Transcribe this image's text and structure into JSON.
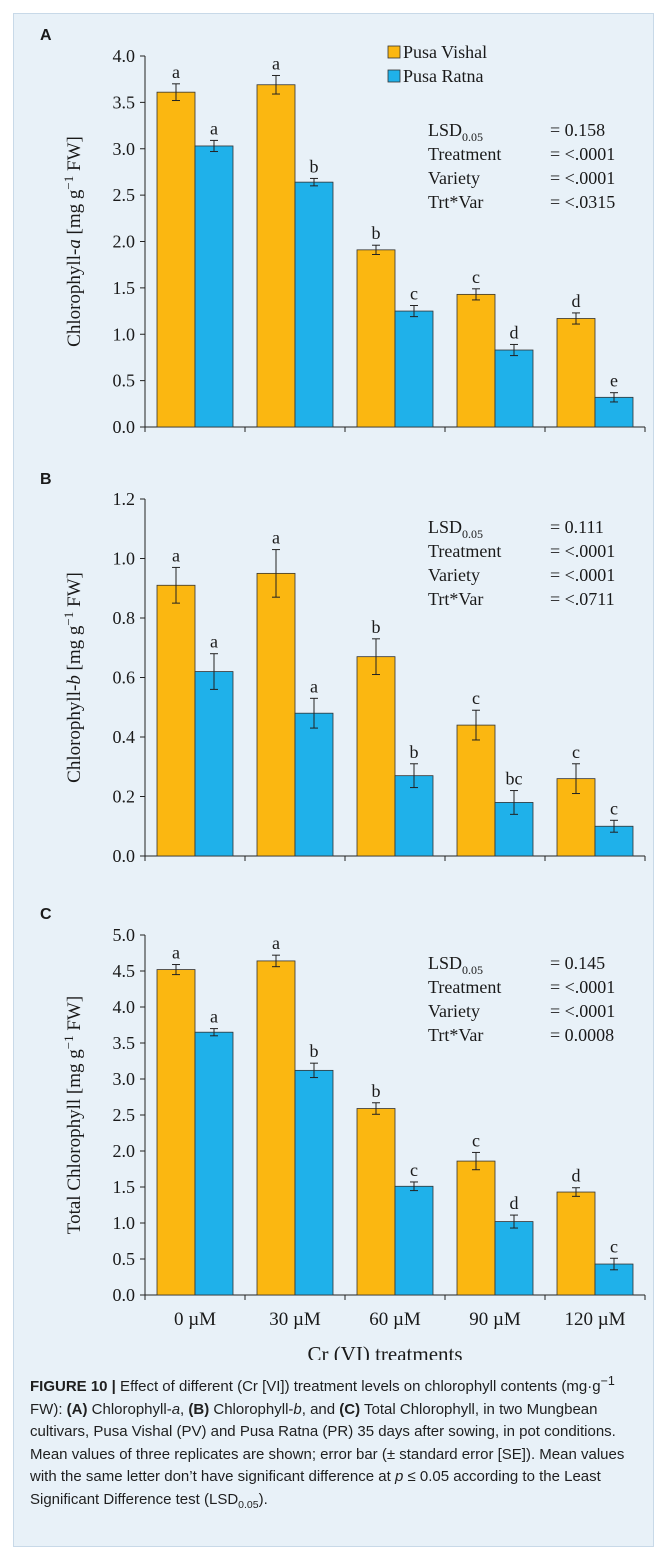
{
  "chart_data": [
    {
      "panel": "A",
      "type": "bar",
      "ylabel_main": "Chlorophyll-",
      "ylabel_italic": "a",
      "ylabel_unit_pre": " [mg g",
      "ylabel_unit_sup": "−1",
      "ylabel_unit_post": " FW]",
      "ylim": [
        0,
        4.0
      ],
      "yticks": [
        "0.0",
        "0.5",
        "1.0",
        "1.5",
        "2.0",
        "2.5",
        "3.0",
        "3.5",
        "4.0"
      ],
      "yticks_values": [
        0,
        0.5,
        1,
        1.5,
        2,
        2.5,
        3,
        3.5,
        4
      ],
      "categories": [
        "0 µM",
        "30 µM",
        "60 µM",
        "90 µM",
        "120 µM"
      ],
      "series": [
        {
          "name": "Pusa Vishal",
          "color": "#fbb711",
          "values": [
            3.61,
            3.69,
            1.91,
            1.43,
            1.17
          ],
          "errors": [
            0.09,
            0.1,
            0.05,
            0.06,
            0.06
          ],
          "letters": [
            "a",
            "a",
            "b",
            "c",
            "d"
          ]
        },
        {
          "name": "Pusa Ratna",
          "color": "#1fb1ea",
          "values": [
            3.03,
            2.64,
            1.25,
            0.83,
            0.32
          ],
          "errors": [
            0.06,
            0.04,
            0.06,
            0.06,
            0.05
          ],
          "letters": [
            "a",
            "b",
            "c",
            "d",
            "e"
          ]
        }
      ],
      "legend": "top-center",
      "stats": [
        {
          "label": "LSD",
          "sub": "0.05",
          "value": "=   0.158"
        },
        {
          "label": "Treatment",
          "sub": "",
          "value": "= <.0001"
        },
        {
          "label": "Variety",
          "sub": "",
          "value": "= <.0001"
        },
        {
          "label": "Trt*Var",
          "sub": "",
          "value": "= <.0315"
        }
      ]
    },
    {
      "panel": "B",
      "type": "bar",
      "ylabel_main": "Chlorophyll-",
      "ylabel_italic": "b",
      "ylabel_unit_pre": " [mg g",
      "ylabel_unit_sup": "−1",
      "ylabel_unit_post": " FW]",
      "ylim": [
        0,
        1.2
      ],
      "yticks": [
        "0.0",
        "0.2",
        "0.4",
        "0.6",
        "0.8",
        "1.0",
        "1.2"
      ],
      "yticks_values": [
        0,
        0.2,
        0.4,
        0.6,
        0.8,
        1.0,
        1.2
      ],
      "categories": [
        "0 µM",
        "30 µM",
        "60 µM",
        "90 µM",
        "120 µM"
      ],
      "series": [
        {
          "name": "Pusa Vishal",
          "color": "#fbb711",
          "values": [
            0.91,
            0.95,
            0.67,
            0.44,
            0.26
          ],
          "errors": [
            0.06,
            0.08,
            0.06,
            0.05,
            0.05
          ],
          "letters": [
            "a",
            "a",
            "b",
            "c",
            "c"
          ]
        },
        {
          "name": "Pusa Ratna",
          "color": "#1fb1ea",
          "values": [
            0.62,
            0.48,
            0.27,
            0.18,
            0.1
          ],
          "errors": [
            0.06,
            0.05,
            0.04,
            0.04,
            0.02
          ],
          "letters": [
            "a",
            "a",
            "b",
            "bc",
            "c"
          ]
        }
      ],
      "stats": [
        {
          "label": "LSD",
          "sub": "0.05",
          "value": "=   0.111"
        },
        {
          "label": "Treatment",
          "sub": "",
          "value": "= <.0001"
        },
        {
          "label": "Variety",
          "sub": "",
          "value": "= <.0001"
        },
        {
          "label": "Trt*Var",
          "sub": "",
          "value": "= <.0711"
        }
      ]
    },
    {
      "panel": "C",
      "type": "bar",
      "ylabel_main": "Total Chlorophyll",
      "ylabel_italic": "",
      "ylabel_unit_pre": " [mg g",
      "ylabel_unit_sup": "−1",
      "ylabel_unit_post": " FW]",
      "ylim": [
        0,
        5.0
      ],
      "yticks": [
        "0.0",
        "0.5",
        "1.0",
        "1.5",
        "2.0",
        "2.5",
        "3.0",
        "3.5",
        "4.0",
        "4.5",
        "5.0"
      ],
      "yticks_values": [
        0,
        0.5,
        1,
        1.5,
        2,
        2.5,
        3,
        3.5,
        4,
        4.5,
        5
      ],
      "categories": [
        "0 µM",
        "30 µM",
        "60 µM",
        "90 µM",
        "120 µM"
      ],
      "xlabel": "Cr (VI) treatments",
      "series": [
        {
          "name": "Pusa Vishal",
          "color": "#fbb711",
          "values": [
            4.52,
            4.64,
            2.59,
            1.86,
            1.43
          ],
          "errors": [
            0.07,
            0.08,
            0.08,
            0.12,
            0.06
          ],
          "letters": [
            "a",
            "a",
            "b",
            "c",
            "d"
          ]
        },
        {
          "name": "Pusa Ratna",
          "color": "#1fb1ea",
          "values": [
            3.65,
            3.12,
            1.51,
            1.02,
            0.43
          ],
          "errors": [
            0.05,
            0.1,
            0.06,
            0.09,
            0.08
          ],
          "letters": [
            "a",
            "b",
            "c",
            "d",
            "c"
          ]
        }
      ],
      "stats": [
        {
          "label": "LSD",
          "sub": "0.05",
          "value": "=   0.145"
        },
        {
          "label": "Treatment",
          "sub": "",
          "value": "= <.0001"
        },
        {
          "label": "Variety",
          "sub": "",
          "value": "= <.0001"
        },
        {
          "label": "Trt*Var",
          "sub": "",
          "value": "= 0.0008"
        }
      ]
    }
  ],
  "caption": {
    "figure_label": "FIGURE 10 |",
    "t1": " Effect of different (Cr [VI]) treatment levels on chlorophyll contents (mg·g",
    "t1_sup": "−1",
    "t2": " FW): ",
    "a_label": "(A)",
    "a_text": " Chlorophyll-",
    "a_ital": "a",
    "sep1": ", ",
    "b_label": "(B)",
    "b_text": " Chlorophyll-",
    "b_ital": "b",
    "sep2": ", and ",
    "c_label": "(C)",
    "c_text": " Total Chlorophyll, in two Mungbean cultivars, Pusa Vishal (PV) and Pusa Ratna (PR) 35 days after sowing, in pot conditions. Mean values of three replicates are shown; error bar (± standard error [SE]). Mean values with the same letter don’t have significant difference at ",
    "p_ital": "p",
    "t3": " ≤ 0.05 according to the Least Significant Difference test (LSD",
    "t3_sub": "0.05",
    "t4": ")."
  }
}
